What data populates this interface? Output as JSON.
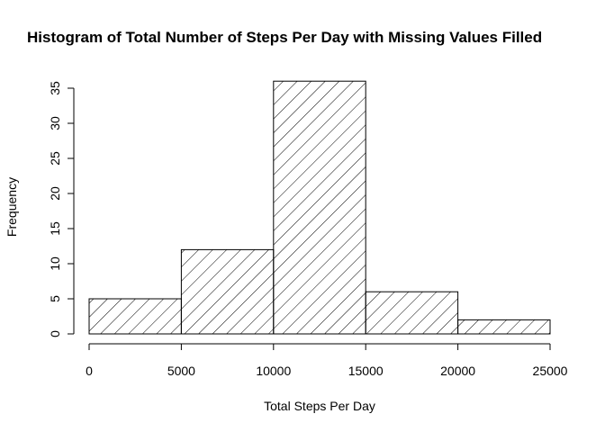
{
  "chart_data": {
    "type": "bar",
    "title": "Histogram of Total Number of Steps Per Day with Missing Values Filled",
    "xlabel": "Total Steps Per Day",
    "ylabel": "Frequency",
    "bins": [
      {
        "from": 0,
        "to": 5000,
        "count": 5
      },
      {
        "from": 5000,
        "to": 10000,
        "count": 12
      },
      {
        "from": 10000,
        "to": 15000,
        "count": 36
      },
      {
        "from": 15000,
        "to": 20000,
        "count": 6
      },
      {
        "from": 20000,
        "to": 25000,
        "count": 2
      }
    ],
    "xlim": [
      0,
      25000
    ],
    "ylim": [
      0,
      36
    ],
    "x_ticks": [
      "0",
      "5000",
      "10000",
      "15000",
      "20000",
      "25000"
    ],
    "y_ticks": [
      "0",
      "5",
      "10",
      "15",
      "20",
      "25",
      "30",
      "35"
    ],
    "bar_fill": "diagonal-hatch",
    "bar_color": "#000000",
    "grid": false
  }
}
